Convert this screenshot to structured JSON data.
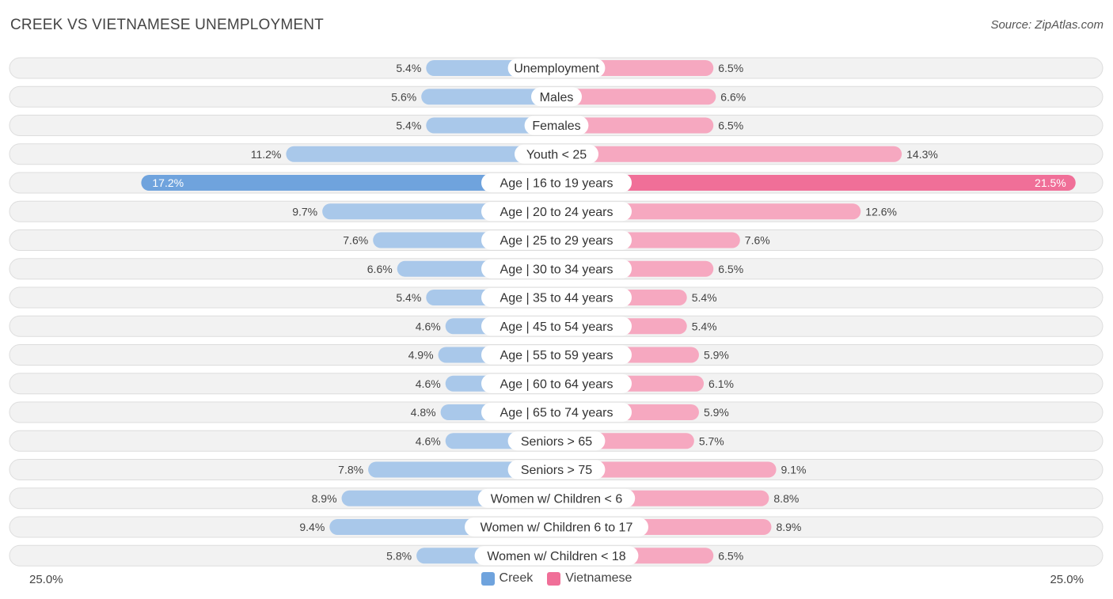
{
  "title": "CREEK VS VIETNAMESE UNEMPLOYMENT",
  "source": "Source: ZipAtlas.com",
  "colors": {
    "creek": "#6fa3dd",
    "creek_light": "#a9c8ea",
    "vietnamese": "#f06f98",
    "vietnamese_light": "#f6a8c0",
    "row_bg": "#f2f2f2",
    "row_border": "#dddddd"
  },
  "chart_data": {
    "type": "bar",
    "orientation": "horizontal-diverging",
    "title": "CREEK VS VIETNAMESE UNEMPLOYMENT",
    "xlim": [
      0,
      25.0
    ],
    "axis_left_label": "25.0%",
    "axis_right_label": "25.0%",
    "legend_position": "bottom-center",
    "categories": [
      "Unemployment",
      "Males",
      "Females",
      "Youth < 25",
      "Age | 16 to 19 years",
      "Age | 20 to 24 years",
      "Age | 25 to 29 years",
      "Age | 30 to 34 years",
      "Age | 35 to 44 years",
      "Age | 45 to 54 years",
      "Age | 55 to 59 years",
      "Age | 60 to 64 years",
      "Age | 65 to 74 years",
      "Seniors > 65",
      "Seniors > 75",
      "Women w/ Children < 6",
      "Women w/ Children 6 to 17",
      "Women w/ Children < 18"
    ],
    "series": [
      {
        "name": "Creek",
        "values": [
          5.4,
          5.6,
          5.4,
          11.2,
          17.2,
          9.7,
          7.6,
          6.6,
          5.4,
          4.6,
          4.9,
          4.6,
          4.8,
          4.6,
          7.8,
          8.9,
          9.4,
          5.8
        ],
        "labels": [
          "5.4%",
          "5.6%",
          "5.4%",
          "11.2%",
          "17.2%",
          "9.7%",
          "7.6%",
          "6.6%",
          "5.4%",
          "4.6%",
          "4.9%",
          "4.6%",
          "4.8%",
          "4.6%",
          "7.8%",
          "8.9%",
          "9.4%",
          "5.8%"
        ]
      },
      {
        "name": "Vietnamese",
        "values": [
          6.5,
          6.6,
          6.5,
          14.3,
          21.5,
          12.6,
          7.6,
          6.5,
          5.4,
          5.4,
          5.9,
          6.1,
          5.9,
          5.7,
          9.1,
          8.8,
          8.9,
          6.5
        ],
        "labels": [
          "6.5%",
          "6.6%",
          "6.5%",
          "14.3%",
          "21.5%",
          "12.6%",
          "7.6%",
          "6.5%",
          "5.4%",
          "5.4%",
          "5.9%",
          "6.1%",
          "5.9%",
          "5.7%",
          "9.1%",
          "8.8%",
          "8.9%",
          "6.5%"
        ]
      }
    ]
  }
}
